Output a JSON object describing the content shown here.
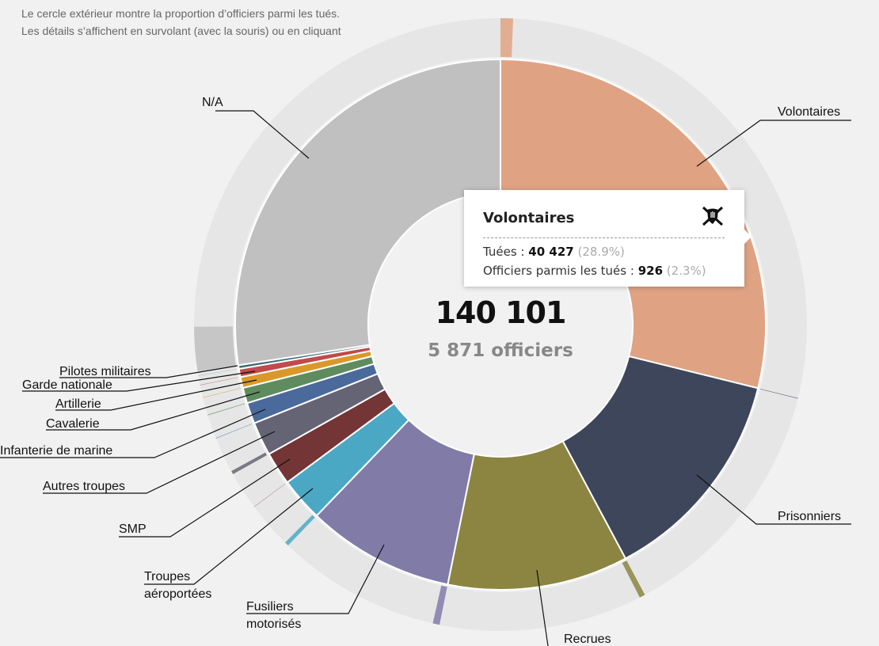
{
  "intro": {
    "line1": "Le cercle extérieur montre la proportion d’officiers parmi les tués.",
    "line2": "Les détails s’affichent en survolant (avec la souris) ou en cliquant"
  },
  "center": {
    "total": "140 101",
    "officers": "5 871 officiers"
  },
  "tooltip": {
    "title": "Volontaires",
    "icon": "crossed-swords-shield-icon",
    "killed_label": "Tuées :",
    "killed_value": "40 427",
    "killed_pct": "(28.9%)",
    "officers_label": "Officiers parmis les tués :",
    "officers_value": "926",
    "officers_pct": "(2.3%)"
  },
  "chart_data": {
    "type": "pie",
    "subtype": "donut-with-outer-ring",
    "total": 140101,
    "total_officers": 5871,
    "categories": [
      {
        "name": "Volontaires",
        "lines": [
          "Volontaires"
        ],
        "value": 40427,
        "officers": 926,
        "color": "#dfa383"
      },
      {
        "name": "Prisonniers",
        "lines": [
          "Prisonniers"
        ],
        "value": 18680,
        "officers": 40,
        "color": "#3d465b"
      },
      {
        "name": "Recrues",
        "lines": [
          "Recrues"
        ],
        "value": 15411,
        "officers": 420,
        "color": "#8b8541"
      },
      {
        "name": "Fusiliers motorisés",
        "lines": [
          "Fusiliers",
          "motorisés"
        ],
        "value": 12609,
        "officers": 500,
        "color": "#817ba8"
      },
      {
        "name": "Troupes aéroportées",
        "lines": [
          "Troupes",
          "aéroportées"
        ],
        "value": 3736,
        "officers": 300,
        "color": "#4aa8c4"
      },
      {
        "name": "SMP",
        "lines": [
          "SMP"
        ],
        "value": 2841,
        "officers": 20,
        "color": "#733536"
      },
      {
        "name": "Autres troupes",
        "lines": [
          "Autres troupes"
        ],
        "value": 2880,
        "officers": 250,
        "color": "#656474"
      },
      {
        "name": "Infanterie de marine",
        "lines": [
          "Infanterie de marine"
        ],
        "value": 1790,
        "officers": 30,
        "color": "#4a6a9c"
      },
      {
        "name": "Cavalerie",
        "lines": [
          "Cavalerie"
        ],
        "value": 1323,
        "officers": 40,
        "color": "#5f8c5f"
      },
      {
        "name": "Artillerie",
        "lines": [
          "Artillerie"
        ],
        "value": 934,
        "officers": 30,
        "color": "#d9992a"
      },
      {
        "name": "Garde nationale",
        "lines": [
          "Garde nationale"
        ],
        "value": 700,
        "officers": 30,
        "color": "#c24a4a"
      },
      {
        "name": "Pilotes militaires",
        "lines": [
          "Pilotes militaires"
        ],
        "value": 311,
        "officers": 10,
        "color": "#3d6a75"
      },
      {
        "name": "N/A",
        "lines": [
          "N/A"
        ],
        "value": 38459,
        "officers": 3275,
        "color": "#c0c0c0"
      }
    ]
  }
}
